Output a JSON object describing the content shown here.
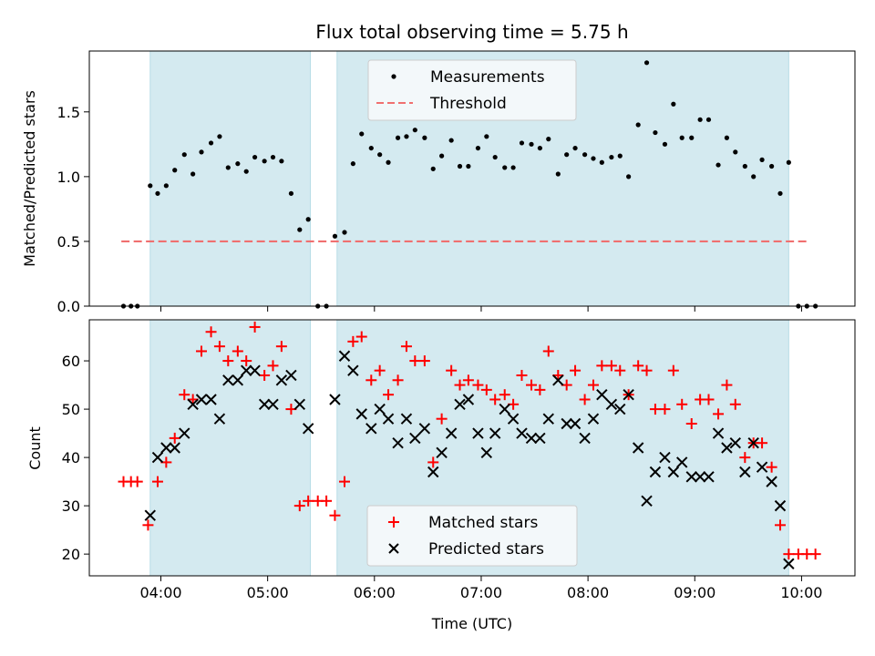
{
  "chart_data": {
    "type": "scatter",
    "title": "Flux total observing time = 5.75 h",
    "xlabel": "Time (UTC)",
    "xlim": [
      3.33,
      10.5
    ],
    "xticks": [
      {
        "v": 4,
        "label": "04:00"
      },
      {
        "v": 5,
        "label": "05:00"
      },
      {
        "v": 6,
        "label": "06:00"
      },
      {
        "v": 7,
        "label": "07:00"
      },
      {
        "v": 8,
        "label": "08:00"
      },
      {
        "v": 9,
        "label": "09:00"
      },
      {
        "v": 10,
        "label": "10:00"
      }
    ],
    "shaded_intervals": [
      [
        3.9,
        5.4
      ],
      [
        5.65,
        9.88
      ]
    ],
    "shade_color": "#d4eaf0",
    "panels": [
      {
        "ylabel": "Matched/Predicted stars",
        "ylim": [
          0,
          1.97
        ],
        "yticks": [
          {
            "v": 0.0,
            "label": "0.0"
          },
          {
            "v": 0.5,
            "label": "0.5"
          },
          {
            "v": 1.0,
            "label": "1.0"
          },
          {
            "v": 1.5,
            "label": "1.5"
          }
        ],
        "threshold": {
          "name": "Threshold",
          "y": 0.5,
          "x_range": [
            3.63,
            10.07
          ],
          "color": "#f07070"
        },
        "legend": {
          "placement": "upper center"
        },
        "series": [
          {
            "name": "Measurements",
            "marker": "dot",
            "color": "#000000",
            "x": [
              3.65,
              3.72,
              3.78,
              3.9,
              3.97,
              4.05,
              4.13,
              4.22,
              4.3,
              4.38,
              4.47,
              4.55,
              4.63,
              4.72,
              4.8,
              4.88,
              4.97,
              5.05,
              5.13,
              5.22,
              5.3,
              5.38,
              5.47,
              5.55,
              5.63,
              5.72,
              5.8,
              5.88,
              5.97,
              6.05,
              6.13,
              6.22,
              6.3,
              6.38,
              6.47,
              6.55,
              6.63,
              6.72,
              6.8,
              6.88,
              6.97,
              7.05,
              7.13,
              7.22,
              7.3,
              7.38,
              7.47,
              7.55,
              7.63,
              7.72,
              7.8,
              7.88,
              7.97,
              8.05,
              8.13,
              8.22,
              8.3,
              8.38,
              8.47,
              8.55,
              8.63,
              8.72,
              8.8,
              8.88,
              8.97,
              9.05,
              9.13,
              9.22,
              9.3,
              9.38,
              9.47,
              9.55,
              9.63,
              9.72,
              9.8,
              9.88,
              9.97,
              10.05,
              10.13
            ],
            "y": [
              0,
              0,
              0,
              0.93,
              0.87,
              0.93,
              1.05,
              1.17,
              1.02,
              1.19,
              1.26,
              1.31,
              1.07,
              1.1,
              1.04,
              1.15,
              1.12,
              1.15,
              1.12,
              0.87,
              0.59,
              0.67,
              0,
              0,
              0.54,
              0.57,
              1.1,
              1.33,
              1.22,
              1.17,
              1.11,
              1.3,
              1.31,
              1.36,
              1.3,
              1.06,
              1.16,
              1.28,
              1.08,
              1.08,
              1.22,
              1.31,
              1.15,
              1.07,
              1.07,
              1.26,
              1.25,
              1.22,
              1.29,
              1.02,
              1.17,
              1.22,
              1.17,
              1.14,
              1.11,
              1.15,
              1.16,
              1.0,
              1.4,
              1.88,
              1.34,
              1.25,
              1.56,
              1.3,
              1.3,
              1.44,
              1.44,
              1.09,
              1.3,
              1.19,
              1.08,
              1.0,
              1.13,
              1.08,
              0.87,
              1.11,
              0,
              0,
              0
            ]
          }
        ]
      },
      {
        "ylabel": "Count",
        "ylim": [
          15.5,
          68.5
        ],
        "yticks": [
          {
            "v": 20,
            "label": "20"
          },
          {
            "v": 30,
            "label": "30"
          },
          {
            "v": 40,
            "label": "40"
          },
          {
            "v": 50,
            "label": "50"
          },
          {
            "v": 60,
            "label": "60"
          }
        ],
        "legend": {
          "placement": "lower center"
        },
        "series": [
          {
            "name": "Matched stars",
            "marker": "plus",
            "color": "#ff0000",
            "x": [
              3.65,
              3.72,
              3.78,
              3.88,
              3.97,
              4.05,
              4.13,
              4.22,
              4.3,
              4.38,
              4.47,
              4.55,
              4.63,
              4.72,
              4.8,
              4.88,
              4.97,
              5.05,
              5.13,
              5.22,
              5.3,
              5.38,
              5.47,
              5.55,
              5.63,
              5.72,
              5.8,
              5.88,
              5.97,
              6.05,
              6.13,
              6.22,
              6.3,
              6.38,
              6.47,
              6.55,
              6.63,
              6.72,
              6.8,
              6.88,
              6.97,
              7.05,
              7.13,
              7.22,
              7.3,
              7.38,
              7.47,
              7.55,
              7.63,
              7.72,
              7.8,
              7.88,
              7.97,
              8.05,
              8.13,
              8.22,
              8.3,
              8.38,
              8.47,
              8.55,
              8.63,
              8.72,
              8.8,
              8.88,
              8.97,
              9.05,
              9.13,
              9.22,
              9.3,
              9.38,
              9.47,
              9.55,
              9.63,
              9.72,
              9.8,
              9.88,
              9.97,
              10.05,
              10.13
            ],
            "y": [
              35,
              35,
              35,
              26,
              35,
              39,
              44,
              53,
              52,
              62,
              66,
              63,
              60,
              62,
              60,
              67,
              57,
              59,
              63,
              50,
              30,
              31,
              31,
              31,
              28,
              35,
              64,
              65,
              56,
              58,
              53,
              56,
              63,
              60,
              60,
              39,
              48,
              58,
              55,
              56,
              55,
              54,
              52,
              53,
              51,
              57,
              55,
              54,
              62,
              57,
              55,
              58,
              52,
              55,
              59,
              59,
              58,
              53,
              59,
              58,
              50,
              50,
              58,
              51,
              47,
              52,
              52,
              49,
              55,
              51,
              40,
              43,
              43,
              38,
              26,
              20,
              20,
              20,
              20
            ]
          },
          {
            "name": "Predicted stars",
            "marker": "x",
            "color": "#000000",
            "x": [
              3.9,
              3.97,
              4.05,
              4.13,
              4.22,
              4.3,
              4.38,
              4.47,
              4.55,
              4.63,
              4.72,
              4.8,
              4.88,
              4.97,
              5.05,
              5.13,
              5.22,
              5.3,
              5.38,
              5.63,
              5.72,
              5.8,
              5.88,
              5.97,
              6.05,
              6.13,
              6.22,
              6.3,
              6.38,
              6.47,
              6.55,
              6.63,
              6.72,
              6.8,
              6.88,
              6.97,
              7.05,
              7.13,
              7.22,
              7.3,
              7.38,
              7.47,
              7.55,
              7.63,
              7.72,
              7.8,
              7.88,
              7.97,
              8.05,
              8.13,
              8.22,
              8.3,
              8.38,
              8.47,
              8.55,
              8.63,
              8.72,
              8.8,
              8.88,
              8.97,
              9.05,
              9.13,
              9.22,
              9.3,
              9.38,
              9.47,
              9.55,
              9.63,
              9.72,
              9.8,
              9.88
            ],
            "y": [
              28,
              40,
              42,
              42,
              45,
              51,
              52,
              52,
              48,
              56,
              56,
              58,
              58,
              51,
              51,
              56,
              57,
              51,
              46,
              52,
              61,
              58,
              49,
              46,
              50,
              48,
              43,
              48,
              44,
              46,
              37,
              41,
              45,
              51,
              52,
              45,
              41,
              45,
              50,
              48,
              45,
              44,
              44,
              48,
              56,
              47,
              47,
              44,
              48,
              53,
              51,
              50,
              53,
              42,
              31,
              37,
              40,
              37,
              39,
              36,
              36,
              36,
              45,
              42,
              43,
              37,
              43,
              38,
              35,
              30,
              18
            ]
          }
        ]
      }
    ]
  }
}
